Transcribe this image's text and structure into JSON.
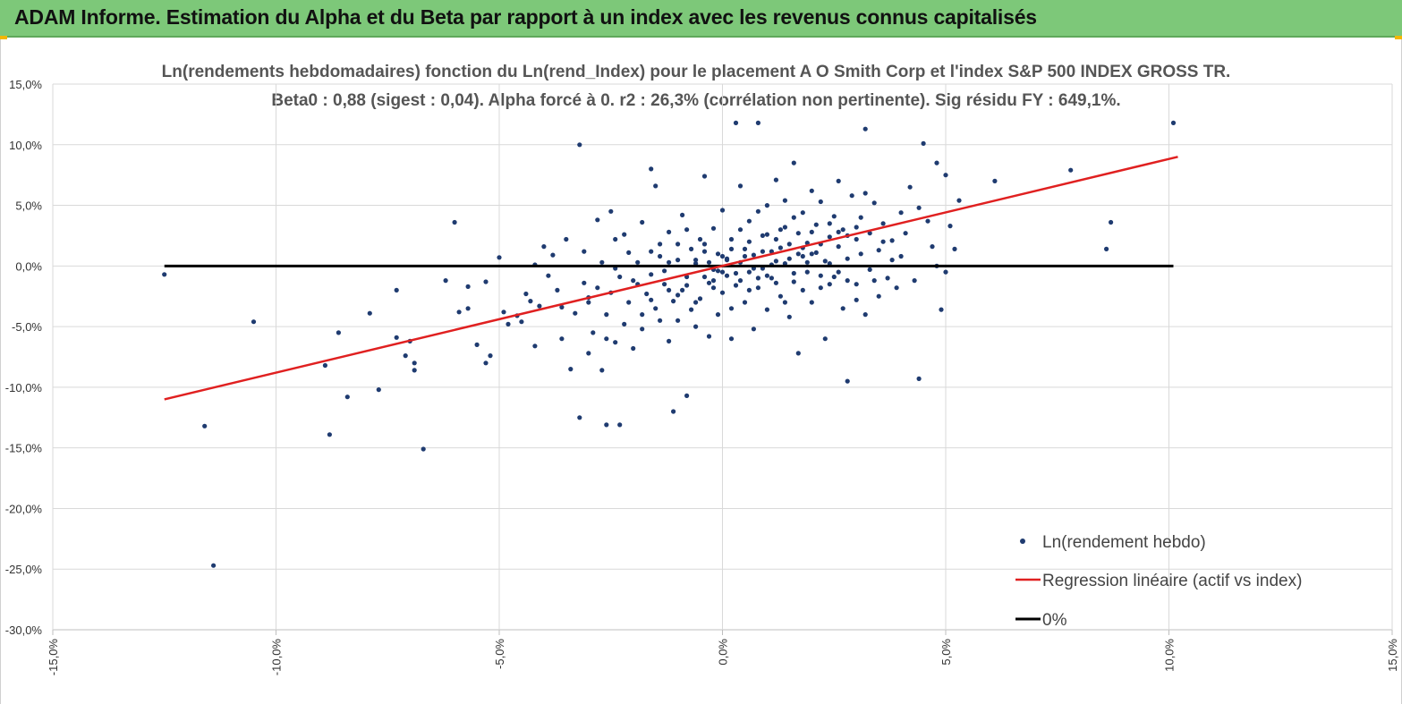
{
  "header": {
    "title": "ADAM Informe. Estimation du Alpha et du Beta par rapport à un index avec les revenus connus capitalisés"
  },
  "colors": {
    "banner": "#7dc879",
    "points": "#1f3b70",
    "regression": "#e02020",
    "zero_line": "#000000",
    "grid": "#d9d9d9"
  },
  "chart_data": {
    "type": "scatter",
    "title_line1": "Ln(rendements hebdomadaires) fonction du Ln(rend_Index) pour le placement A O Smith Corp et l'index S&P 500 INDEX GROSS TR.",
    "title_line2": "Beta0 : 0,88 (sigest : 0,04). Alpha forcé à 0. r2 : 26,3% (corrélation non pertinente). Sig résidu FY : 649,1%.",
    "xlim": [
      -0.15,
      0.15
    ],
    "ylim": [
      -0.3,
      0.15
    ],
    "x_ticks": [
      {
        "v": -0.15,
        "label": "-15,0%"
      },
      {
        "v": -0.1,
        "label": "-10,0%"
      },
      {
        "v": -0.05,
        "label": "-5,0%"
      },
      {
        "v": 0.0,
        "label": "0,0%"
      },
      {
        "v": 0.05,
        "label": "5,0%"
      },
      {
        "v": 0.1,
        "label": "10,0%"
      },
      {
        "v": 0.15,
        "label": "15,0%"
      }
    ],
    "y_ticks": [
      {
        "v": 0.15,
        "label": "15,0%"
      },
      {
        "v": 0.1,
        "label": "10,0%"
      },
      {
        "v": 0.05,
        "label": "5,0%"
      },
      {
        "v": 0.0,
        "label": "0,0%"
      },
      {
        "v": -0.05,
        "label": "-5,0%"
      },
      {
        "v": -0.1,
        "label": "-10,0%"
      },
      {
        "v": -0.15,
        "label": "-15,0%"
      },
      {
        "v": -0.2,
        "label": "-20,0%"
      },
      {
        "v": -0.25,
        "label": "-25,0%"
      },
      {
        "v": -0.3,
        "label": "-30,0%"
      }
    ],
    "grid": "horizontal",
    "legend_position": "bottom-right",
    "legend": {
      "scatter": "Ln(rendement hebdo)",
      "regression": "Regression linéaire (actif vs index)",
      "zero": "0%"
    },
    "regression_line": {
      "x": [
        -0.125,
        0.102
      ],
      "y": [
        -0.11,
        0.09
      ]
    },
    "zero_line": {
      "x": [
        -0.125,
        0.101
      ],
      "y": [
        0.0,
        0.0
      ]
    },
    "points": [
      [
        -0.125,
        -0.007
      ],
      [
        -0.116,
        -0.132
      ],
      [
        -0.114,
        -0.247
      ],
      [
        -0.105,
        -0.046
      ],
      [
        -0.089,
        -0.082
      ],
      [
        -0.088,
        -0.139
      ],
      [
        -0.086,
        -0.055
      ],
      [
        -0.084,
        -0.108
      ],
      [
        -0.079,
        -0.039
      ],
      [
        -0.077,
        -0.102
      ],
      [
        -0.073,
        -0.059
      ],
      [
        -0.073,
        -0.02
      ],
      [
        -0.071,
        -0.074
      ],
      [
        -0.07,
        -0.062
      ],
      [
        -0.069,
        -0.086
      ],
      [
        -0.069,
        -0.08
      ],
      [
        -0.067,
        -0.151
      ],
      [
        -0.062,
        -0.012
      ],
      [
        -0.06,
        0.036
      ],
      [
        -0.059,
        -0.038
      ],
      [
        -0.057,
        -0.035
      ],
      [
        -0.057,
        -0.017
      ],
      [
        -0.055,
        -0.065
      ],
      [
        -0.053,
        -0.08
      ],
      [
        -0.053,
        -0.013
      ],
      [
        -0.052,
        -0.074
      ],
      [
        -0.05,
        0.007
      ],
      [
        -0.049,
        -0.038
      ],
      [
        -0.048,
        -0.048
      ],
      [
        -0.046,
        -0.041
      ],
      [
        -0.045,
        -0.046
      ],
      [
        -0.044,
        -0.023
      ],
      [
        -0.043,
        -0.029
      ],
      [
        -0.042,
        -0.066
      ],
      [
        -0.042,
        0.001
      ],
      [
        -0.041,
        -0.033
      ],
      [
        -0.04,
        0.016
      ],
      [
        -0.039,
        -0.008
      ],
      [
        -0.038,
        0.009
      ],
      [
        -0.037,
        -0.02
      ],
      [
        -0.036,
        -0.034
      ],
      [
        -0.036,
        -0.06
      ],
      [
        -0.035,
        0.022
      ],
      [
        -0.034,
        -0.085
      ],
      [
        -0.033,
        -0.039
      ],
      [
        -0.032,
        -0.125
      ],
      [
        -0.031,
        -0.014
      ],
      [
        -0.031,
        0.012
      ],
      [
        -0.03,
        -0.072
      ],
      [
        -0.03,
        -0.03
      ],
      [
        -0.029,
        -0.055
      ],
      [
        -0.028,
        -0.018
      ],
      [
        -0.027,
        0.003
      ],
      [
        -0.027,
        -0.086
      ],
      [
        -0.026,
        -0.131
      ],
      [
        -0.026,
        -0.04
      ],
      [
        -0.025,
        0.045
      ],
      [
        -0.025,
        -0.022
      ],
      [
        -0.024,
        -0.063
      ],
      [
        -0.024,
        0.022
      ],
      [
        -0.023,
        -0.009
      ],
      [
        -0.023,
        -0.131
      ],
      [
        -0.022,
        -0.048
      ],
      [
        -0.021,
        0.011
      ],
      [
        -0.021,
        -0.03
      ],
      [
        -0.02,
        -0.068
      ],
      [
        -0.019,
        0.003
      ],
      [
        -0.019,
        -0.015
      ],
      [
        -0.018,
        0.036
      ],
      [
        -0.018,
        -0.04
      ],
      [
        -0.017,
        -0.023
      ],
      [
        -0.016,
        -0.007
      ],
      [
        -0.016,
        0.08
      ],
      [
        -0.015,
        -0.035
      ],
      [
        -0.015,
        0.066
      ],
      [
        -0.014,
        0.018
      ],
      [
        -0.013,
        -0.015
      ],
      [
        -0.013,
        -0.004
      ],
      [
        -0.012,
        -0.062
      ],
      [
        -0.012,
        0.028
      ],
      [
        -0.011,
        -0.029
      ],
      [
        -0.011,
        -0.12
      ],
      [
        -0.01,
        0.005
      ],
      [
        -0.01,
        -0.045
      ],
      [
        -0.009,
        -0.02
      ],
      [
        -0.009,
        0.042
      ],
      [
        -0.008,
        -0.009
      ],
      [
        -0.008,
        -0.107
      ],
      [
        -0.007,
        -0.036
      ],
      [
        -0.007,
        0.014
      ],
      [
        -0.006,
        -0.05
      ],
      [
        -0.006,
        0.002
      ],
      [
        -0.005,
        0.022
      ],
      [
        -0.005,
        -0.027
      ],
      [
        -0.004,
        -0.009
      ],
      [
        -0.004,
        0.074
      ],
      [
        -0.003,
        -0.058
      ],
      [
        -0.003,
        -0.014
      ],
      [
        -0.002,
        0.031
      ],
      [
        -0.002,
        -0.003
      ],
      [
        -0.001,
        -0.04
      ],
      [
        -0.001,
        0.01
      ],
      [
        0.0,
        -0.022
      ],
      [
        0.0,
        0.046
      ],
      [
        0.001,
        0.005
      ],
      [
        0.001,
        -0.008
      ],
      [
        0.002,
        -0.06
      ],
      [
        0.002,
        0.022
      ],
      [
        0.003,
        0.118
      ],
      [
        0.003,
        -0.016
      ],
      [
        0.004,
        0.003
      ],
      [
        0.004,
        0.066
      ],
      [
        0.005,
        -0.03
      ],
      [
        0.005,
        0.014
      ],
      [
        0.006,
        -0.005
      ],
      [
        0.006,
        0.037
      ],
      [
        0.007,
        -0.052
      ],
      [
        0.007,
        0.009
      ],
      [
        0.008,
        0.118
      ],
      [
        0.008,
        -0.018
      ],
      [
        0.009,
        0.025
      ],
      [
        0.009,
        -0.002
      ],
      [
        0.01,
        0.05
      ],
      [
        0.01,
        -0.036
      ],
      [
        0.011,
        0.012
      ],
      [
        0.011,
        -0.01
      ],
      [
        0.012,
        0.071
      ],
      [
        0.012,
        0.004
      ],
      [
        0.013,
        -0.025
      ],
      [
        0.013,
        0.03
      ],
      [
        0.014,
        0.002
      ],
      [
        0.014,
        0.054
      ],
      [
        0.015,
        -0.042
      ],
      [
        0.015,
        0.018
      ],
      [
        0.016,
        0.085
      ],
      [
        0.016,
        -0.013
      ],
      [
        0.017,
        0.027
      ],
      [
        0.017,
        -0.072
      ],
      [
        0.018,
        0.008
      ],
      [
        0.018,
        0.044
      ],
      [
        0.019,
        -0.005
      ],
      [
        0.019,
        0.019
      ],
      [
        0.02,
        0.062
      ],
      [
        0.02,
        -0.03
      ],
      [
        0.021,
        0.011
      ],
      [
        0.021,
        0.034
      ],
      [
        0.022,
        -0.018
      ],
      [
        0.022,
        0.053
      ],
      [
        0.023,
        0.004
      ],
      [
        0.023,
        -0.06
      ],
      [
        0.024,
        0.024
      ],
      [
        0.024,
        0.002
      ],
      [
        0.025,
        0.041
      ],
      [
        0.025,
        -0.009
      ],
      [
        0.026,
        0.07
      ],
      [
        0.026,
        0.016
      ],
      [
        0.027,
        -0.035
      ],
      [
        0.027,
        0.03
      ],
      [
        0.028,
        -0.095
      ],
      [
        0.028,
        0.006
      ],
      [
        0.029,
        0.058
      ],
      [
        0.03,
        0.022
      ],
      [
        0.03,
        -0.015
      ],
      [
        0.031,
        0.04
      ],
      [
        0.031,
        0.01
      ],
      [
        0.032,
        -0.04
      ],
      [
        0.032,
        0.113
      ],
      [
        0.033,
        0.027
      ],
      [
        0.033,
        -0.003
      ],
      [
        0.034,
        0.052
      ],
      [
        0.035,
        0.013
      ],
      [
        0.035,
        -0.025
      ],
      [
        0.036,
        0.035
      ],
      [
        0.037,
        -0.01
      ],
      [
        0.038,
        0.021
      ],
      [
        0.039,
        -0.018
      ],
      [
        0.04,
        0.044
      ],
      [
        0.04,
        0.008
      ],
      [
        0.041,
        0.027
      ],
      [
        0.042,
        0.065
      ],
      [
        0.043,
        -0.012
      ],
      [
        0.044,
        0.048
      ],
      [
        0.044,
        -0.093
      ],
      [
        0.045,
        0.101
      ],
      [
        0.046,
        0.037
      ],
      [
        0.047,
        0.016
      ],
      [
        0.048,
        0.085
      ],
      [
        0.048,
        0.0
      ],
      [
        0.049,
        -0.036
      ],
      [
        0.05,
        -0.005
      ],
      [
        0.05,
        0.075
      ],
      [
        0.051,
        0.033
      ],
      [
        0.052,
        0.014
      ],
      [
        0.053,
        0.054
      ],
      [
        0.061,
        0.07
      ],
      [
        0.078,
        0.079
      ],
      [
        0.086,
        0.014
      ],
      [
        0.087,
        0.036
      ],
      [
        0.101,
        0.118
      ],
      [
        -0.032,
        0.1
      ],
      [
        -0.03,
        -0.026
      ],
      [
        -0.028,
        0.038
      ],
      [
        -0.026,
        -0.06
      ],
      [
        -0.024,
        -0.002
      ],
      [
        -0.022,
        0.026
      ],
      [
        -0.02,
        -0.012
      ],
      [
        -0.018,
        -0.052
      ],
      [
        -0.016,
        0.012
      ],
      [
        -0.014,
        -0.045
      ],
      [
        -0.012,
        0.003
      ],
      [
        -0.01,
        -0.024
      ],
      [
        -0.008,
        0.03
      ],
      [
        -0.006,
        -0.03
      ],
      [
        -0.004,
        0.018
      ],
      [
        -0.002,
        -0.012
      ],
      [
        0.0,
        0.008
      ],
      [
        0.002,
        -0.035
      ],
      [
        0.004,
        0.03
      ],
      [
        0.006,
        -0.02
      ],
      [
        0.008,
        0.045
      ],
      [
        0.01,
        -0.008
      ],
      [
        0.012,
        0.022
      ],
      [
        0.014,
        -0.03
      ],
      [
        0.016,
        0.04
      ],
      [
        0.018,
        -0.02
      ],
      [
        0.02,
        0.028
      ],
      [
        0.022,
        -0.008
      ],
      [
        0.024,
        0.035
      ],
      [
        0.026,
        -0.005
      ],
      [
        0.028,
        0.025
      ],
      [
        0.03,
        -0.028
      ],
      [
        0.032,
        0.06
      ],
      [
        0.034,
        -0.012
      ],
      [
        0.036,
        0.02
      ],
      [
        0.038,
        0.005
      ],
      [
        -0.003,
        0.003
      ],
      [
        -0.001,
        -0.004
      ],
      [
        0.001,
        0.006
      ],
      [
        0.003,
        -0.006
      ],
      [
        0.005,
        0.008
      ],
      [
        0.007,
        -0.002
      ],
      [
        0.009,
        0.012
      ],
      [
        0.011,
        0.001
      ],
      [
        0.013,
        0.015
      ],
      [
        0.015,
        0.006
      ],
      [
        0.017,
        0.01
      ],
      [
        0.019,
        0.003
      ],
      [
        -0.004,
        0.012
      ],
      [
        -0.002,
        -0.018
      ],
      [
        0.0,
        -0.005
      ],
      [
        0.002,
        0.014
      ],
      [
        0.004,
        -0.012
      ],
      [
        0.006,
        0.02
      ],
      [
        0.008,
        -0.01
      ],
      [
        0.01,
        0.026
      ],
      [
        0.012,
        -0.014
      ],
      [
        0.014,
        0.032
      ],
      [
        0.016,
        -0.006
      ],
      [
        0.018,
        0.015
      ],
      [
        -0.006,
        0.005
      ],
      [
        -0.008,
        -0.016
      ],
      [
        -0.01,
        0.018
      ],
      [
        -0.012,
        -0.02
      ],
      [
        -0.014,
        0.008
      ],
      [
        -0.016,
        -0.028
      ],
      [
        0.02,
        0.01
      ],
      [
        0.022,
        0.018
      ],
      [
        0.024,
        -0.015
      ],
      [
        0.026,
        0.028
      ],
      [
        0.028,
        -0.012
      ],
      [
        0.03,
        0.032
      ]
    ]
  }
}
